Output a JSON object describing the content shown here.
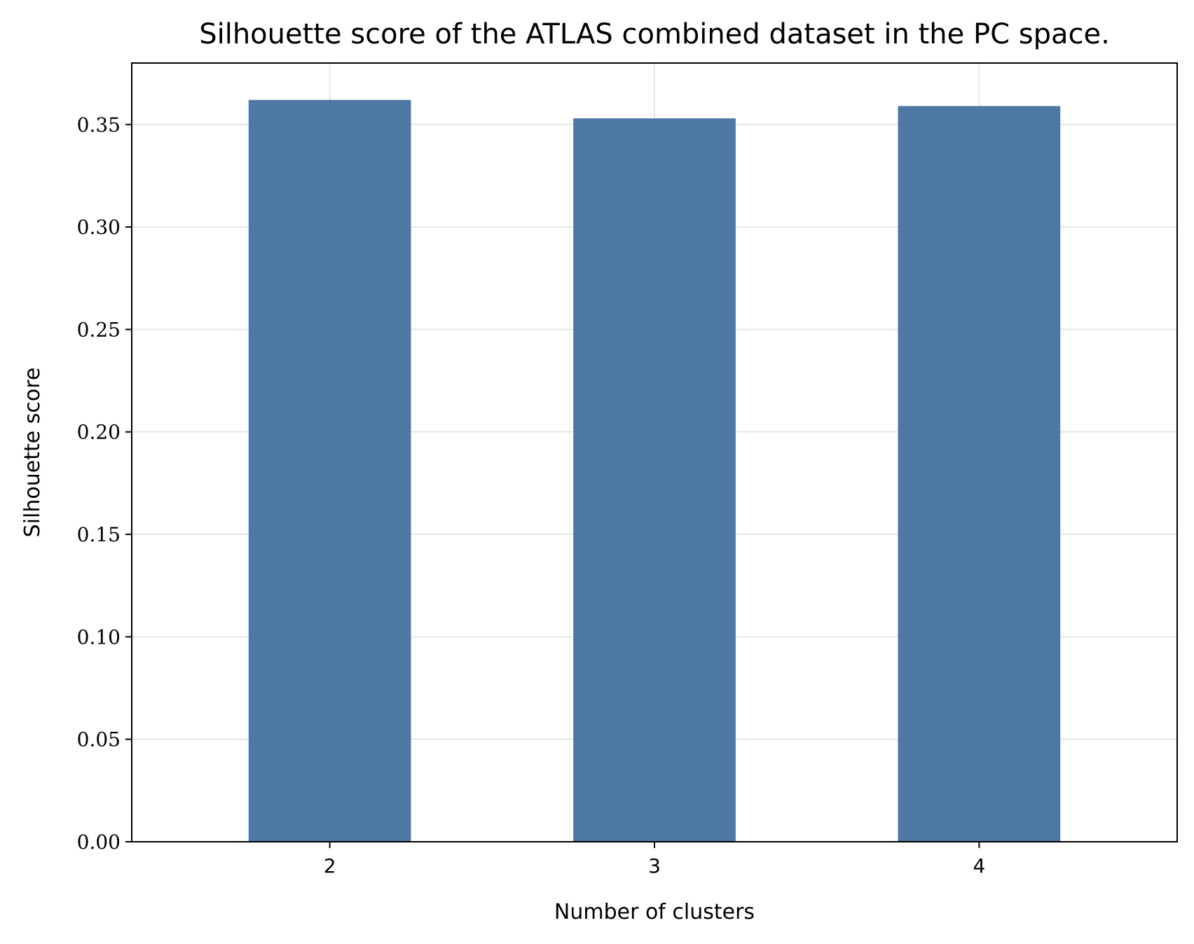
{
  "chart_data": {
    "type": "bar",
    "title": "Silhouette score of the ATLAS combined dataset in the PC space.",
    "xlabel": "Number of clusters",
    "ylabel": "Silhouette score",
    "categories": [
      "2",
      "3",
      "4"
    ],
    "values": [
      0.362,
      0.353,
      0.359
    ],
    "ylim": [
      0,
      0.38
    ],
    "yticks": [
      "0.00",
      "0.05",
      "0.10",
      "0.15",
      "0.20",
      "0.25",
      "0.30",
      "0.35"
    ],
    "grid": true,
    "bar_color": "#4e78a4",
    "grid_color": "#e6e6e6"
  }
}
